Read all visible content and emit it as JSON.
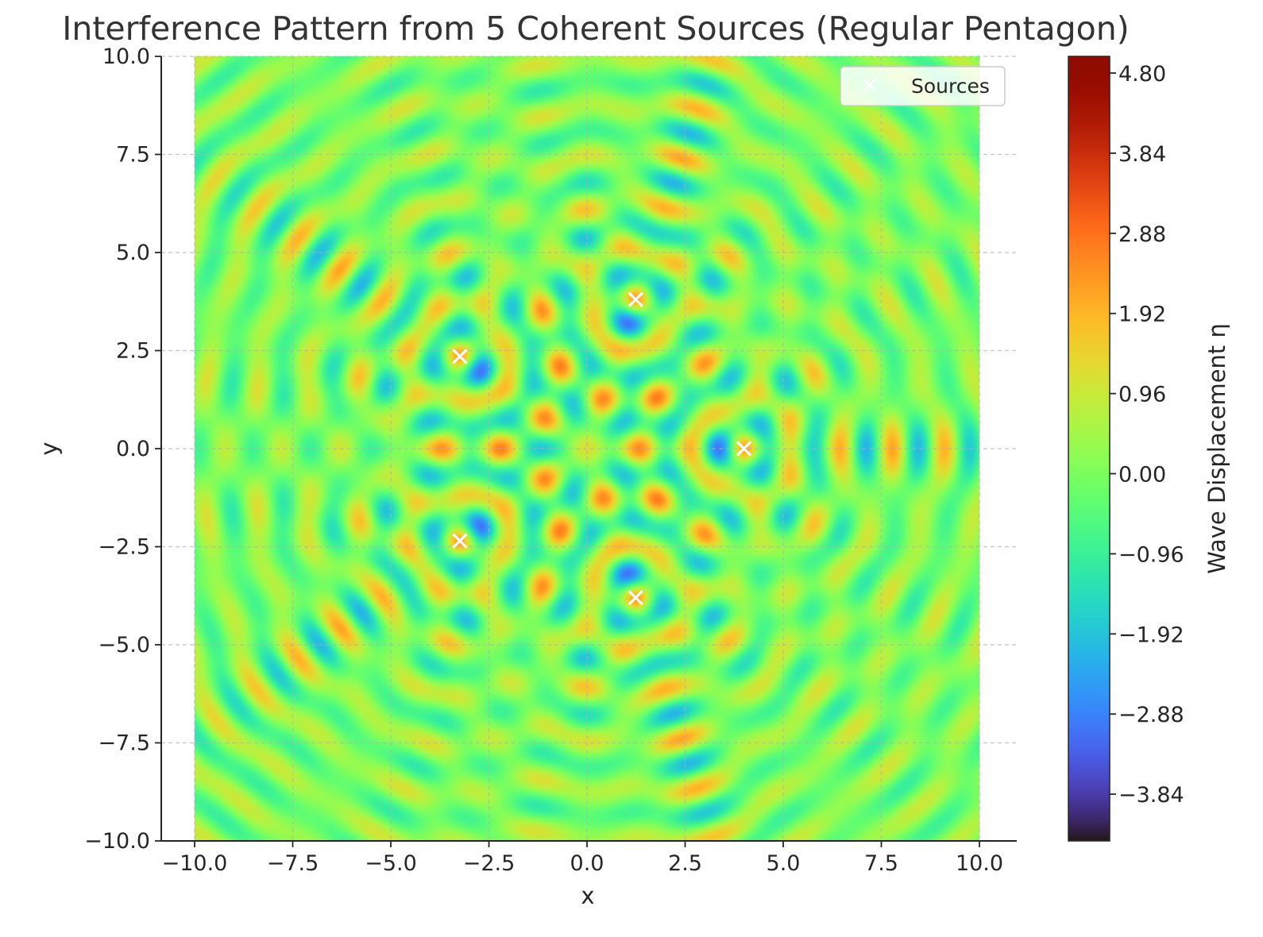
{
  "chart_data": {
    "type": "heatmap",
    "title": "Interference Pattern from 5 Coherent Sources (Regular Pentagon)",
    "xlabel": "x",
    "ylabel": "y",
    "xlim": [
      -10.0,
      10.0
    ],
    "ylim": [
      -10.0,
      10.0
    ],
    "xticks": [
      "−10.0",
      "−7.5",
      "−5.0",
      "−2.5",
      "0.0",
      "2.5",
      "5.0",
      "7.5",
      "10.0"
    ],
    "yticks": [
      "−10.0",
      "−7.5",
      "−5.0",
      "−2.5",
      "0.0",
      "2.5",
      "5.0",
      "7.5",
      "10.0"
    ],
    "xtick_values": [
      -10,
      -7.5,
      -5,
      -2.5,
      0,
      2.5,
      5,
      7.5,
      10
    ],
    "ytick_values": [
      -10,
      -7.5,
      -5,
      -2.5,
      0,
      2.5,
      5,
      7.5,
      10
    ],
    "grid": true,
    "colormap": "turbo",
    "colorbar": {
      "label": "Wave Displacement η",
      "range": [
        -4.4,
        5.0
      ],
      "ticks": [
        "−3.84",
        "−2.88",
        "−1.92",
        "−0.96",
        "0.00",
        "0.96",
        "1.92",
        "2.88",
        "3.84",
        "4.80"
      ],
      "tick_values": [
        -3.84,
        -2.88,
        -1.92,
        -0.96,
        0.0,
        0.96,
        1.92,
        2.88,
        3.84,
        4.8
      ]
    },
    "legend": {
      "label": "Sources",
      "position": "top-right",
      "marker": "x",
      "color": "#ffffff"
    },
    "sources": [
      {
        "x": 4.0,
        "y": 0.0
      },
      {
        "x": 1.24,
        "y": 3.8
      },
      {
        "x": -3.24,
        "y": 2.35
      },
      {
        "x": -3.24,
        "y": -2.35
      },
      {
        "x": 1.24,
        "y": -3.8
      }
    ],
    "wavenumber": 5.0
  }
}
